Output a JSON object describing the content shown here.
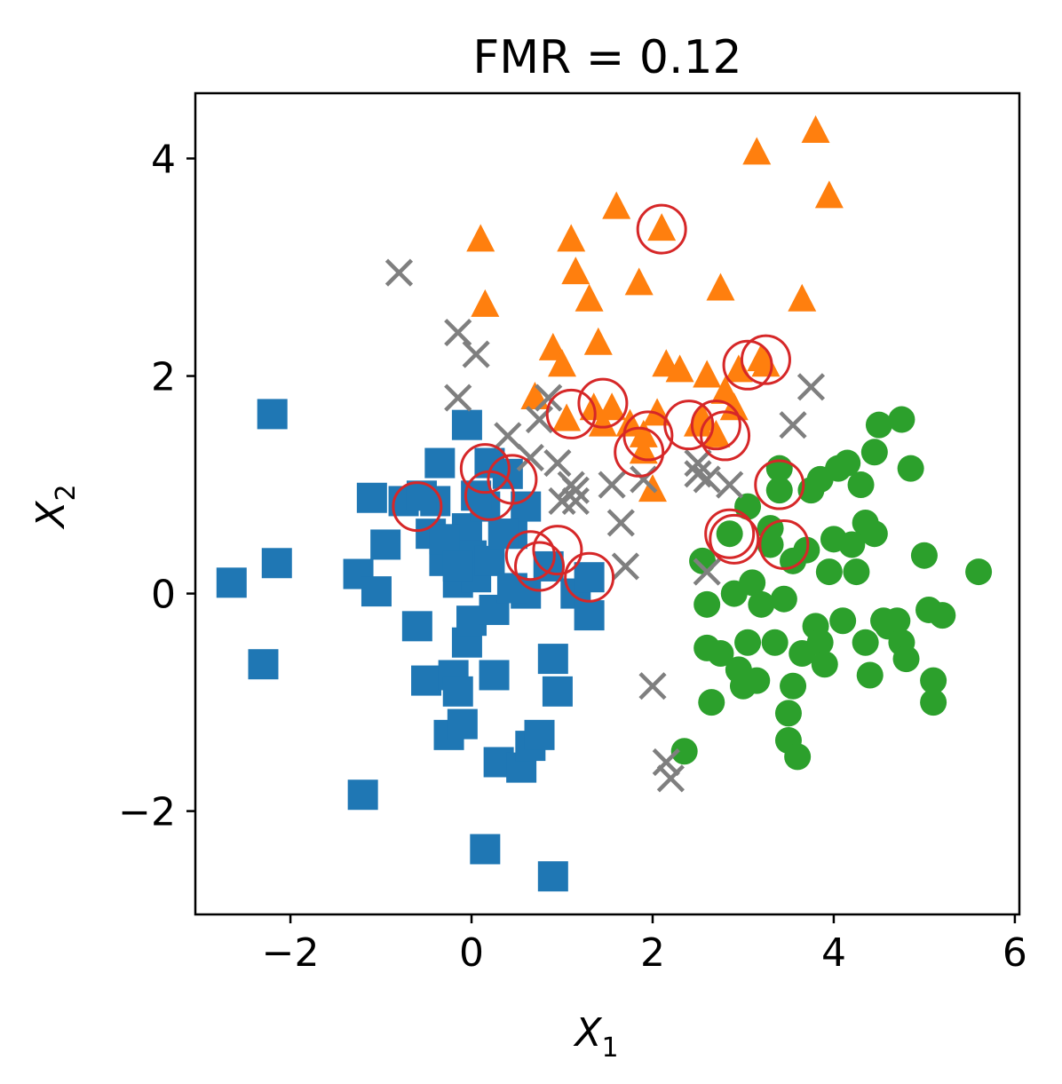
{
  "chart_data": {
    "type": "scatter",
    "title": "FMR = 0.12",
    "xlabel": "X",
    "xlabel_sub": "1",
    "ylabel": "X",
    "ylabel_sub": "2",
    "xlim": [
      -3.05,
      6.05
    ],
    "ylim": [
      -2.95,
      4.6
    ],
    "xticks": [
      -2,
      0,
      2,
      4,
      6
    ],
    "yticks": [
      -2,
      0,
      2,
      4
    ],
    "xtick_labels": [
      "−2",
      "0",
      "2",
      "4",
      "6"
    ],
    "ytick_labels": [
      "−2",
      "0",
      "2",
      "4"
    ],
    "grid": false,
    "colors": {
      "squares": "#1f77b4",
      "triangles": "#ff7f0e",
      "circles": "#2ca02c",
      "crosses": "#7f7f7f",
      "rings": "#d62728"
    },
    "series": [
      {
        "marker": "square",
        "color": "#1f77b4",
        "points": [
          [
            -2.65,
            0.1
          ],
          [
            -2.2,
            1.65
          ],
          [
            -2.3,
            -0.65
          ],
          [
            -2.15,
            0.28
          ],
          [
            -1.25,
            0.18
          ],
          [
            -1.2,
            -1.85
          ],
          [
            -1.1,
            0.88
          ],
          [
            -1.05,
            0.02
          ],
          [
            -0.95,
            0.45
          ],
          [
            -0.75,
            0.85
          ],
          [
            -0.6,
            -0.3
          ],
          [
            -0.5,
            -0.8
          ],
          [
            -0.45,
            0.55
          ],
          [
            -0.4,
            0.85
          ],
          [
            -0.35,
            1.2
          ],
          [
            -0.3,
            0.3
          ],
          [
            -0.25,
            -1.3
          ],
          [
            -0.2,
            -0.75
          ],
          [
            -0.15,
            0.1
          ],
          [
            -0.15,
            -0.9
          ],
          [
            -0.05,
            0.6
          ],
          [
            0.0,
            0.35
          ],
          [
            0.05,
            0.15
          ],
          [
            -0.05,
            -0.45
          ],
          [
            -0.1,
            -1.2
          ],
          [
            0.0,
            -0.25
          ],
          [
            -0.05,
            1.55
          ],
          [
            0.15,
            0.8
          ],
          [
            0.2,
            1.2
          ],
          [
            0.2,
            0.3
          ],
          [
            0.25,
            -0.75
          ],
          [
            0.25,
            -0.15
          ],
          [
            0.3,
            -1.55
          ],
          [
            0.15,
            -2.35
          ],
          [
            0.4,
            1.1
          ],
          [
            0.45,
            0.55
          ],
          [
            0.55,
            -1.6
          ],
          [
            0.6,
            0.0
          ],
          [
            0.65,
            -1.4
          ],
          [
            0.75,
            -1.3
          ],
          [
            0.6,
            0.8
          ],
          [
            0.85,
            0.25
          ],
          [
            0.9,
            -0.6
          ],
          [
            0.95,
            -0.9
          ],
          [
            0.9,
            -2.6
          ],
          [
            1.15,
            0.0
          ],
          [
            1.3,
            -0.2
          ],
          [
            1.3,
            0.15
          ],
          [
            -0.3,
            0.5
          ],
          [
            -0.55,
            0.9
          ],
          [
            0.05,
            0.9
          ],
          [
            0.35,
            0.55
          ],
          [
            -0.15,
            0.25
          ],
          [
            0.45,
            0.05
          ]
        ]
      },
      {
        "marker": "triangle",
        "color": "#ff7f0e",
        "points": [
          [
            0.1,
            3.25
          ],
          [
            0.15,
            2.65
          ],
          [
            0.7,
            1.8
          ],
          [
            0.9,
            2.25
          ],
          [
            1.0,
            2.1
          ],
          [
            1.1,
            3.25
          ],
          [
            1.15,
            2.95
          ],
          [
            1.3,
            2.7
          ],
          [
            1.4,
            2.3
          ],
          [
            1.6,
            3.55
          ],
          [
            1.55,
            1.7
          ],
          [
            1.75,
            1.55
          ],
          [
            1.85,
            2.85
          ],
          [
            1.9,
            1.3
          ],
          [
            2.0,
            0.95
          ],
          [
            2.05,
            1.65
          ],
          [
            2.1,
            3.35
          ],
          [
            2.15,
            2.1
          ],
          [
            2.3,
            2.05
          ],
          [
            2.55,
            1.6
          ],
          [
            2.6,
            2.0
          ],
          [
            2.75,
            2.8
          ],
          [
            2.8,
            1.85
          ],
          [
            2.9,
            1.7
          ],
          [
            2.95,
            2.05
          ],
          [
            3.15,
            4.05
          ],
          [
            3.2,
            2.15
          ],
          [
            3.25,
            2.1
          ],
          [
            3.65,
            2.7
          ],
          [
            3.8,
            4.25
          ],
          [
            3.95,
            3.65
          ],
          [
            1.05,
            1.6
          ],
          [
            1.35,
            1.7
          ],
          [
            1.45,
            1.55
          ],
          [
            1.9,
            1.45
          ],
          [
            2.5,
            1.55
          ],
          [
            2.7,
            1.45
          ]
        ]
      },
      {
        "marker": "circle",
        "color": "#2ca02c",
        "points": [
          [
            2.35,
            -1.45
          ],
          [
            2.55,
            0.3
          ],
          [
            2.6,
            -0.1
          ],
          [
            2.6,
            -0.5
          ],
          [
            2.65,
            -1.0
          ],
          [
            2.75,
            -0.55
          ],
          [
            2.85,
            0.55
          ],
          [
            2.9,
            0.0
          ],
          [
            2.95,
            -0.7
          ],
          [
            3.0,
            -0.85
          ],
          [
            3.05,
            -0.45
          ],
          [
            3.05,
            0.8
          ],
          [
            3.1,
            0.1
          ],
          [
            3.15,
            -0.8
          ],
          [
            3.2,
            -0.1
          ],
          [
            3.3,
            0.6
          ],
          [
            3.35,
            -0.45
          ],
          [
            3.4,
            1.15
          ],
          [
            3.45,
            -0.05
          ],
          [
            3.5,
            -1.1
          ],
          [
            3.5,
            -1.35
          ],
          [
            3.55,
            0.3
          ],
          [
            3.55,
            -0.85
          ],
          [
            3.6,
            -1.5
          ],
          [
            3.65,
            -0.55
          ],
          [
            3.7,
            0.4
          ],
          [
            3.75,
            0.95
          ],
          [
            3.8,
            -0.3
          ],
          [
            3.85,
            -0.45
          ],
          [
            3.9,
            -0.65
          ],
          [
            3.95,
            0.2
          ],
          [
            4.0,
            0.5
          ],
          [
            4.05,
            1.15
          ],
          [
            4.1,
            -0.25
          ],
          [
            4.15,
            1.2
          ],
          [
            4.2,
            0.45
          ],
          [
            4.25,
            0.2
          ],
          [
            4.3,
            1.0
          ],
          [
            4.35,
            -0.45
          ],
          [
            4.35,
            0.65
          ],
          [
            4.4,
            -0.75
          ],
          [
            4.45,
            1.3
          ],
          [
            4.45,
            0.55
          ],
          [
            4.5,
            1.55
          ],
          [
            4.55,
            -0.25
          ],
          [
            4.6,
            -0.3
          ],
          [
            4.7,
            -0.25
          ],
          [
            4.75,
            1.6
          ],
          [
            4.75,
            -0.45
          ],
          [
            4.8,
            -0.6
          ],
          [
            4.85,
            1.15
          ],
          [
            5.0,
            0.35
          ],
          [
            5.05,
            -0.15
          ],
          [
            5.1,
            -0.8
          ],
          [
            5.1,
            -1.0
          ],
          [
            5.2,
            -0.2
          ],
          [
            5.6,
            0.2
          ],
          [
            3.85,
            1.05
          ],
          [
            3.3,
            0.45
          ],
          [
            3.4,
            0.95
          ]
        ]
      },
      {
        "marker": "x",
        "color": "#7f7f7f",
        "points": [
          [
            -0.8,
            2.95
          ],
          [
            -0.15,
            2.4
          ],
          [
            -0.15,
            1.8
          ],
          [
            0.05,
            2.2
          ],
          [
            0.4,
            1.45
          ],
          [
            0.65,
            1.25
          ],
          [
            0.75,
            1.6
          ],
          [
            0.85,
            1.8
          ],
          [
            0.95,
            1.2
          ],
          [
            1.0,
            0.85
          ],
          [
            1.1,
            1.0
          ],
          [
            1.15,
            0.95
          ],
          [
            1.15,
            0.85
          ],
          [
            1.55,
            1.0
          ],
          [
            1.65,
            0.65
          ],
          [
            1.7,
            0.25
          ],
          [
            1.9,
            1.05
          ],
          [
            2.0,
            -0.85
          ],
          [
            2.15,
            -1.55
          ],
          [
            2.2,
            -1.7
          ],
          [
            2.5,
            1.2
          ],
          [
            2.5,
            1.1
          ],
          [
            2.6,
            1.05
          ],
          [
            2.6,
            0.2
          ],
          [
            2.85,
            1.0
          ],
          [
            3.55,
            1.55
          ],
          [
            3.75,
            1.9
          ]
        ]
      }
    ],
    "highlighted_points": [
      [
        -0.6,
        0.8
      ],
      [
        0.15,
        1.15
      ],
      [
        0.2,
        0.9
      ],
      [
        0.45,
        1.05
      ],
      [
        0.65,
        0.35
      ],
      [
        0.75,
        0.25
      ],
      [
        0.95,
        0.4
      ],
      [
        1.1,
        1.65
      ],
      [
        1.3,
        0.15
      ],
      [
        1.45,
        1.75
      ],
      [
        1.85,
        1.3
      ],
      [
        1.95,
        1.45
      ],
      [
        2.1,
        3.35
      ],
      [
        2.4,
        1.55
      ],
      [
        2.7,
        1.55
      ],
      [
        2.8,
        1.45
      ],
      [
        2.85,
        0.55
      ],
      [
        2.9,
        0.5
      ],
      [
        3.05,
        2.1
      ],
      [
        3.25,
        2.15
      ],
      [
        3.4,
        1.0
      ],
      [
        3.45,
        0.45
      ]
    ]
  }
}
